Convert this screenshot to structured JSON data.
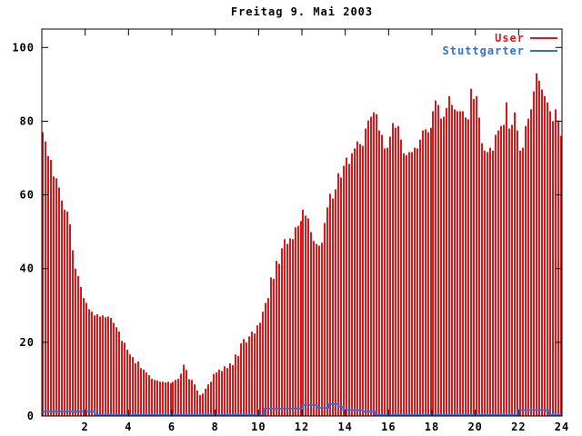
{
  "title": "Freitag 9. Mai 2003",
  "legend": {
    "position": "top-right-inside",
    "items": [
      {
        "label": "User",
        "color": "#e01616"
      },
      {
        "label": "Stuttgarter",
        "color": "#2e6fe6"
      }
    ]
  },
  "colors": {
    "axis": "#000000",
    "background": "#ffffff",
    "user_red": "#e01616",
    "stuttgarter_blue": "#2e6fe6"
  },
  "chart_data": {
    "type": "bar",
    "style_note": "gnuplot-like impulse plot, one thin red bar per 7.5 minutes, blue step line near zero",
    "title": "Freitag 9. Mai 2003",
    "xlabel": "",
    "ylabel": "",
    "x_unit": "hour of day",
    "xlim": [
      0,
      24
    ],
    "ylim": [
      0,
      105
    ],
    "x_ticks": [
      2,
      4,
      6,
      8,
      10,
      12,
      14,
      16,
      18,
      20,
      22,
      24
    ],
    "y_ticks": [
      0,
      20,
      40,
      60,
      80,
      100
    ],
    "grid": false,
    "legend_position": "top-right-inside",
    "series": [
      {
        "name": "User",
        "style": "impulses",
        "color": "#e01616",
        "x_start": 0.0625,
        "x_step": 0.125,
        "values": [
          77,
          74.5,
          70.5,
          69.5,
          65,
          64.5,
          62,
          58.5,
          56,
          55.5,
          52,
          45,
          40,
          38,
          35,
          32,
          30.7,
          29,
          28.3,
          27.3,
          27.6,
          27,
          27.3,
          26.8,
          27,
          26.6,
          25.3,
          24.1,
          22.9,
          20.4,
          19.9,
          18,
          16.7,
          16,
          14.3,
          14.8,
          13,
          12.6,
          11.8,
          11.1,
          10.1,
          9.8,
          9.6,
          9.3,
          9.3,
          9.1,
          9.3,
          8.9,
          9.3,
          9.8,
          10.1,
          11.5,
          13.9,
          12.5,
          10,
          9.8,
          8.6,
          6.9,
          5.7,
          6.1,
          7.4,
          8.6,
          9.3,
          11.4,
          11.8,
          12.6,
          12.2,
          13.5,
          13,
          14.3,
          13.8,
          16.7,
          16.3,
          19.7,
          20.9,
          20,
          21.6,
          22.9,
          22.4,
          24.6,
          25.3,
          28.3,
          30.7,
          32,
          37.6,
          37.2,
          42.1,
          41.3,
          45.5,
          48,
          46.7,
          48.2,
          48,
          51.2,
          51.6,
          52.9,
          56,
          54.4,
          53.6,
          49.9,
          47.5,
          46.7,
          46.2,
          47,
          52.4,
          56.6,
          60.3,
          59,
          61.5,
          65.9,
          64.7,
          67.9,
          70.1,
          68.4,
          71.3,
          72.6,
          74.5,
          73.8,
          73.3,
          78,
          80.2,
          81.2,
          82.4,
          81.9,
          77.5,
          76.3,
          72.6,
          72.8,
          75.8,
          79.5,
          78.2,
          78.7,
          75,
          71.3,
          70.8,
          71.6,
          71.6,
          72.8,
          72.6,
          75,
          77.5,
          77.8,
          77,
          78.2,
          82.7,
          85.6,
          84.4,
          80.7,
          81.2,
          83.6,
          86.8,
          84.4,
          83.2,
          82.7,
          82.7,
          82.7,
          81,
          80.5,
          88.8,
          86,
          86.8,
          81,
          74,
          72,
          71.6,
          72.8,
          72,
          76.3,
          77.5,
          78.7,
          79,
          85.1,
          78,
          79,
          82.4,
          77.5,
          72,
          72.8,
          78.7,
          80.7,
          83.2,
          88.1,
          93,
          91,
          88.6,
          86.8,
          85.1,
          82.7,
          80,
          83.2,
          80.2,
          76
        ]
      },
      {
        "name": "Stuttgarter",
        "style": "step-line",
        "color": "#2e6fe6",
        "segments_hour_start_end_value": [
          [
            0,
            2.45,
            1.2
          ],
          [
            2.45,
            10.25,
            0.3
          ],
          [
            10.25,
            12.05,
            2.0
          ],
          [
            12.05,
            12.7,
            3.0
          ],
          [
            12.7,
            13.25,
            2.2
          ],
          [
            13.25,
            13.7,
            3.2
          ],
          [
            13.7,
            13.9,
            2.5
          ],
          [
            13.9,
            14.8,
            1.6
          ],
          [
            14.8,
            15.4,
            1.2
          ],
          [
            15.4,
            21.95,
            0.3
          ],
          [
            21.95,
            23.4,
            1.6
          ],
          [
            23.4,
            24,
            0.3
          ]
        ]
      }
    ]
  }
}
